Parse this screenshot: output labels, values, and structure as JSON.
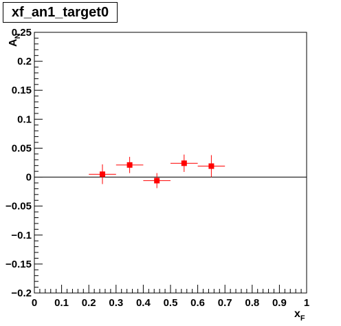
{
  "title": "xf_an1_target0",
  "chart_data": {
    "type": "scatter",
    "title": "xf_an1_target0",
    "xlabel": "x",
    "xlabel_sub": "F",
    "ylabel": "A",
    "ylabel_sub": "N",
    "xlim": [
      0,
      1
    ],
    "ylim": [
      -0.2,
      0.25
    ],
    "x_ticks": [
      "0",
      "0.1",
      "0.2",
      "0.3",
      "0.4",
      "0.5",
      "0.6",
      "0.7",
      "0.8",
      "0.9",
      "1"
    ],
    "y_ticks": [
      "-0.2",
      "-0.15",
      "-0.1",
      "-0.05",
      "0",
      "0.05",
      "0.1",
      "0.15",
      "0.2",
      "0.25"
    ],
    "y_tick_labels": [
      "−0.2",
      "−0.15",
      "−0.1",
      "−0.05",
      "0",
      "0.05",
      "0.1",
      "0.15",
      "0.2",
      "0.25"
    ],
    "reference_line_y": 0,
    "grid": false,
    "marker_color": "#ff0000",
    "points": [
      {
        "x": 0.25,
        "y": 0.005,
        "xerr": 0.05,
        "yerr": 0.017
      },
      {
        "x": 0.35,
        "y": 0.021,
        "xerr": 0.05,
        "yerr": 0.014
      },
      {
        "x": 0.45,
        "y": -0.006,
        "xerr": 0.05,
        "yerr": 0.013
      },
      {
        "x": 0.55,
        "y": 0.024,
        "xerr": 0.05,
        "yerr": 0.015
      },
      {
        "x": 0.65,
        "y": 0.019,
        "xerr": 0.05,
        "yerr": 0.019
      }
    ]
  }
}
